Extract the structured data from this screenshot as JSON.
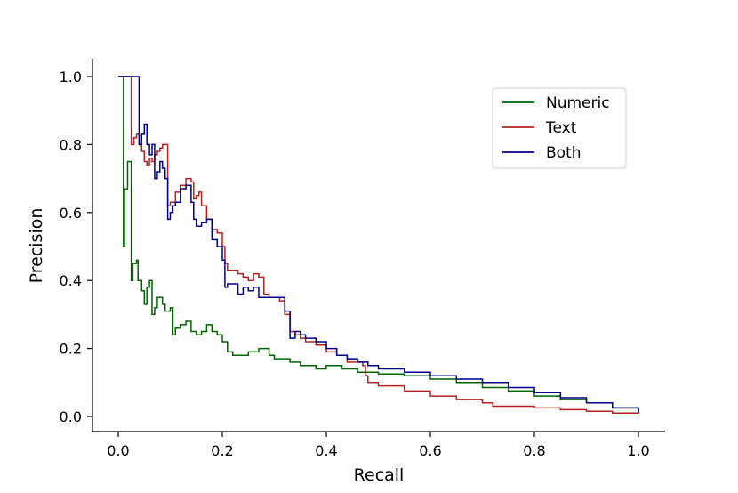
{
  "chart_data": {
    "type": "line",
    "title": "",
    "xlabel": "Recall",
    "ylabel": "Precision",
    "xlim": [
      -0.05,
      1.05
    ],
    "ylim": [
      -0.045,
      1.05
    ],
    "x_ticks": [
      "0.0",
      "0.2",
      "0.4",
      "0.6",
      "0.8",
      "1.0"
    ],
    "y_ticks": [
      "0.0",
      "0.2",
      "0.4",
      "0.6",
      "0.8",
      "1.0"
    ],
    "grid": false,
    "legend_position": "top-right",
    "series": [
      {
        "name": "Numeric",
        "color": "#006400",
        "step": true,
        "points": [
          [
            0.0,
            1.0
          ],
          [
            0.01,
            1.0
          ],
          [
            0.01,
            0.5
          ],
          [
            0.012,
            0.67
          ],
          [
            0.018,
            0.67
          ],
          [
            0.018,
            0.75
          ],
          [
            0.025,
            0.75
          ],
          [
            0.025,
            0.4
          ],
          [
            0.028,
            0.45
          ],
          [
            0.035,
            0.46
          ],
          [
            0.038,
            0.4
          ],
          [
            0.045,
            0.37
          ],
          [
            0.05,
            0.33
          ],
          [
            0.055,
            0.38
          ],
          [
            0.06,
            0.4
          ],
          [
            0.065,
            0.3
          ],
          [
            0.07,
            0.32
          ],
          [
            0.075,
            0.35
          ],
          [
            0.085,
            0.33
          ],
          [
            0.09,
            0.31
          ],
          [
            0.1,
            0.32
          ],
          [
            0.105,
            0.24
          ],
          [
            0.11,
            0.26
          ],
          [
            0.12,
            0.27
          ],
          [
            0.13,
            0.28
          ],
          [
            0.14,
            0.25
          ],
          [
            0.15,
            0.24
          ],
          [
            0.16,
            0.25
          ],
          [
            0.17,
            0.27
          ],
          [
            0.18,
            0.25
          ],
          [
            0.19,
            0.24
          ],
          [
            0.2,
            0.22
          ],
          [
            0.21,
            0.19
          ],
          [
            0.22,
            0.18
          ],
          [
            0.25,
            0.19
          ],
          [
            0.27,
            0.2
          ],
          [
            0.29,
            0.18
          ],
          [
            0.3,
            0.17
          ],
          [
            0.33,
            0.16
          ],
          [
            0.35,
            0.15
          ],
          [
            0.38,
            0.14
          ],
          [
            0.4,
            0.15
          ],
          [
            0.43,
            0.14
          ],
          [
            0.46,
            0.13
          ],
          [
            0.5,
            0.125
          ],
          [
            0.55,
            0.12
          ],
          [
            0.6,
            0.11
          ],
          [
            0.65,
            0.1
          ],
          [
            0.7,
            0.085
          ],
          [
            0.75,
            0.075
          ],
          [
            0.8,
            0.06
          ],
          [
            0.85,
            0.05
          ],
          [
            0.9,
            0.04
          ],
          [
            0.95,
            0.025
          ],
          [
            1.0,
            0.01
          ]
        ]
      },
      {
        "name": "Text",
        "color": "#b22222",
        "step": true,
        "points": [
          [
            0.0,
            1.0
          ],
          [
            0.025,
            1.0
          ],
          [
            0.025,
            0.8
          ],
          [
            0.03,
            0.8
          ],
          [
            0.03,
            0.82
          ],
          [
            0.035,
            0.83
          ],
          [
            0.04,
            0.8
          ],
          [
            0.045,
            0.78
          ],
          [
            0.05,
            0.75
          ],
          [
            0.055,
            0.74
          ],
          [
            0.06,
            0.76
          ],
          [
            0.065,
            0.75
          ],
          [
            0.07,
            0.77
          ],
          [
            0.075,
            0.78
          ],
          [
            0.08,
            0.79
          ],
          [
            0.085,
            0.8
          ],
          [
            0.09,
            0.8
          ],
          [
            0.095,
            0.62
          ],
          [
            0.1,
            0.63
          ],
          [
            0.11,
            0.66
          ],
          [
            0.12,
            0.68
          ],
          [
            0.13,
            0.7
          ],
          [
            0.14,
            0.69
          ],
          [
            0.145,
            0.64
          ],
          [
            0.15,
            0.65
          ],
          [
            0.155,
            0.66
          ],
          [
            0.16,
            0.62
          ],
          [
            0.17,
            0.58
          ],
          [
            0.18,
            0.55
          ],
          [
            0.19,
            0.54
          ],
          [
            0.2,
            0.5
          ],
          [
            0.205,
            0.45
          ],
          [
            0.21,
            0.43
          ],
          [
            0.22,
            0.43
          ],
          [
            0.23,
            0.42
          ],
          [
            0.24,
            0.41
          ],
          [
            0.25,
            0.4
          ],
          [
            0.26,
            0.42
          ],
          [
            0.27,
            0.41
          ],
          [
            0.28,
            0.36
          ],
          [
            0.29,
            0.35
          ],
          [
            0.3,
            0.35
          ],
          [
            0.31,
            0.34
          ],
          [
            0.32,
            0.3
          ],
          [
            0.33,
            0.25
          ],
          [
            0.34,
            0.24
          ],
          [
            0.35,
            0.23
          ],
          [
            0.36,
            0.22
          ],
          [
            0.38,
            0.21
          ],
          [
            0.4,
            0.19
          ],
          [
            0.42,
            0.18
          ],
          [
            0.44,
            0.16
          ],
          [
            0.47,
            0.15
          ],
          [
            0.475,
            0.12
          ],
          [
            0.48,
            0.1
          ],
          [
            0.5,
            0.09
          ],
          [
            0.55,
            0.075
          ],
          [
            0.6,
            0.06
          ],
          [
            0.65,
            0.05
          ],
          [
            0.7,
            0.04
          ],
          [
            0.72,
            0.03
          ],
          [
            0.8,
            0.025
          ],
          [
            0.85,
            0.02
          ],
          [
            0.9,
            0.015
          ],
          [
            0.95,
            0.01
          ],
          [
            1.0,
            0.008
          ]
        ]
      },
      {
        "name": "Both",
        "color": "#00008b",
        "step": true,
        "points": [
          [
            0.0,
            1.0
          ],
          [
            0.04,
            1.0
          ],
          [
            0.04,
            0.8
          ],
          [
            0.045,
            0.83
          ],
          [
            0.05,
            0.86
          ],
          [
            0.055,
            0.8
          ],
          [
            0.06,
            0.77
          ],
          [
            0.065,
            0.8
          ],
          [
            0.07,
            0.7
          ],
          [
            0.075,
            0.72
          ],
          [
            0.08,
            0.75
          ],
          [
            0.085,
            0.73
          ],
          [
            0.09,
            0.7
          ],
          [
            0.095,
            0.58
          ],
          [
            0.1,
            0.6
          ],
          [
            0.105,
            0.62
          ],
          [
            0.11,
            0.63
          ],
          [
            0.12,
            0.67
          ],
          [
            0.13,
            0.68
          ],
          [
            0.14,
            0.63
          ],
          [
            0.145,
            0.58
          ],
          [
            0.15,
            0.56
          ],
          [
            0.16,
            0.57
          ],
          [
            0.17,
            0.58
          ],
          [
            0.18,
            0.52
          ],
          [
            0.19,
            0.5
          ],
          [
            0.2,
            0.46
          ],
          [
            0.205,
            0.38
          ],
          [
            0.21,
            0.39
          ],
          [
            0.22,
            0.39
          ],
          [
            0.23,
            0.36
          ],
          [
            0.24,
            0.38
          ],
          [
            0.25,
            0.37
          ],
          [
            0.26,
            0.38
          ],
          [
            0.27,
            0.35
          ],
          [
            0.28,
            0.35
          ],
          [
            0.3,
            0.35
          ],
          [
            0.31,
            0.35
          ],
          [
            0.32,
            0.31
          ],
          [
            0.33,
            0.23
          ],
          [
            0.34,
            0.25
          ],
          [
            0.35,
            0.24
          ],
          [
            0.36,
            0.23
          ],
          [
            0.38,
            0.22
          ],
          [
            0.4,
            0.2
          ],
          [
            0.42,
            0.18
          ],
          [
            0.44,
            0.17
          ],
          [
            0.46,
            0.16
          ],
          [
            0.48,
            0.15
          ],
          [
            0.5,
            0.14
          ],
          [
            0.55,
            0.13
          ],
          [
            0.6,
            0.12
          ],
          [
            0.65,
            0.11
          ],
          [
            0.7,
            0.1
          ],
          [
            0.75,
            0.085
          ],
          [
            0.8,
            0.07
          ],
          [
            0.85,
            0.055
          ],
          [
            0.9,
            0.04
          ],
          [
            0.95,
            0.025
          ],
          [
            1.0,
            0.01
          ]
        ]
      }
    ]
  }
}
